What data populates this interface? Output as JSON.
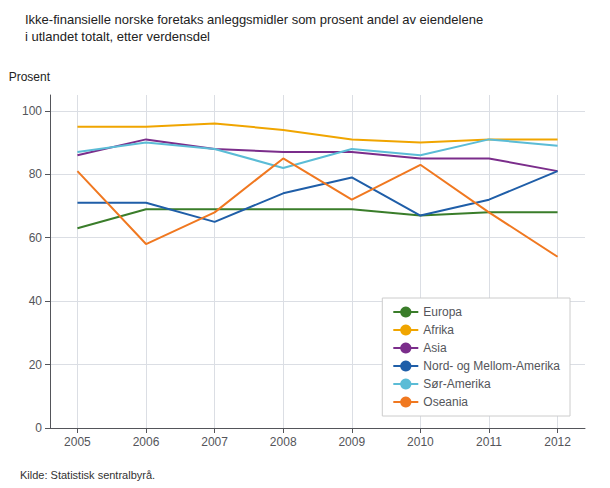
{
  "chart_data": {
    "type": "line",
    "title": "Ikke-finansielle norske foretaks anleggsmidler som prosent andel av eiendelene",
    "subtitle": "i utlandet totalt, etter verdensdel",
    "y_label": "Prosent",
    "source": "Kilde: Statistisk sentralbyrå.",
    "x": [
      2005,
      2006,
      2007,
      2008,
      2009,
      2010,
      2011,
      2012
    ],
    "series": [
      {
        "name": "Europa",
        "color": "#3a7d2a",
        "values": [
          63,
          69,
          69,
          69,
          69,
          67,
          68,
          68
        ]
      },
      {
        "name": "Afrika",
        "color": "#f0a500",
        "values": [
          95,
          95,
          96,
          94,
          91,
          90,
          91,
          91
        ]
      },
      {
        "name": "Asia",
        "color": "#7b2d8b",
        "values": [
          86,
          91,
          88,
          87,
          87,
          85,
          85,
          81
        ]
      },
      {
        "name": "Nord- og Mellom-Amerika",
        "color": "#1f5ea8",
        "values": [
          71,
          71,
          65,
          74,
          79,
          67,
          72,
          81
        ]
      },
      {
        "name": "Sør-Amerika",
        "color": "#5bbcd6",
        "values": [
          87,
          90,
          88,
          82,
          88,
          86,
          91,
          89
        ]
      },
      {
        "name": "Oseania",
        "color": "#f07820",
        "values": [
          81,
          58,
          68,
          85,
          72,
          83,
          68,
          54
        ]
      }
    ],
    "xlim": [
      2004.6,
      2012.4
    ],
    "xticks": [
      2005,
      2006,
      2007,
      2008,
      2009,
      2010,
      2011,
      2012
    ],
    "ylim": [
      0,
      105
    ],
    "yticks": [
      0,
      20,
      40,
      60,
      80,
      100
    ],
    "grid": true,
    "legend": "lower right"
  }
}
